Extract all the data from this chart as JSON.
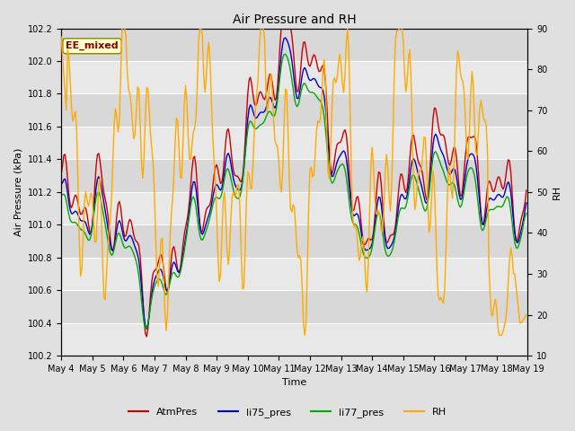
{
  "title": "Air Pressure and RH",
  "xlabel": "Time",
  "ylabel_left": "Air Pressure (kPa)",
  "ylabel_right": "RH",
  "annotation": "EE_mixed",
  "ylim_left": [
    100.2,
    102.2
  ],
  "ylim_right": [
    10,
    90
  ],
  "yticks_left": [
    100.2,
    100.4,
    100.6,
    100.8,
    101.0,
    101.2,
    101.4,
    101.6,
    101.8,
    102.0,
    102.2
  ],
  "yticks_right": [
    10,
    20,
    30,
    40,
    50,
    60,
    70,
    80,
    90
  ],
  "colors": {
    "AtmPres": "#cc0000",
    "li75_pres": "#0000cc",
    "li77_pres": "#00aa00",
    "RH": "#ffaa00"
  },
  "band_colors": [
    "#e8e8e8",
    "#d8d8d8"
  ],
  "annotation_bg": "#ffffcc",
  "annotation_fg": "#880000",
  "annotation_edge": "#888800"
}
